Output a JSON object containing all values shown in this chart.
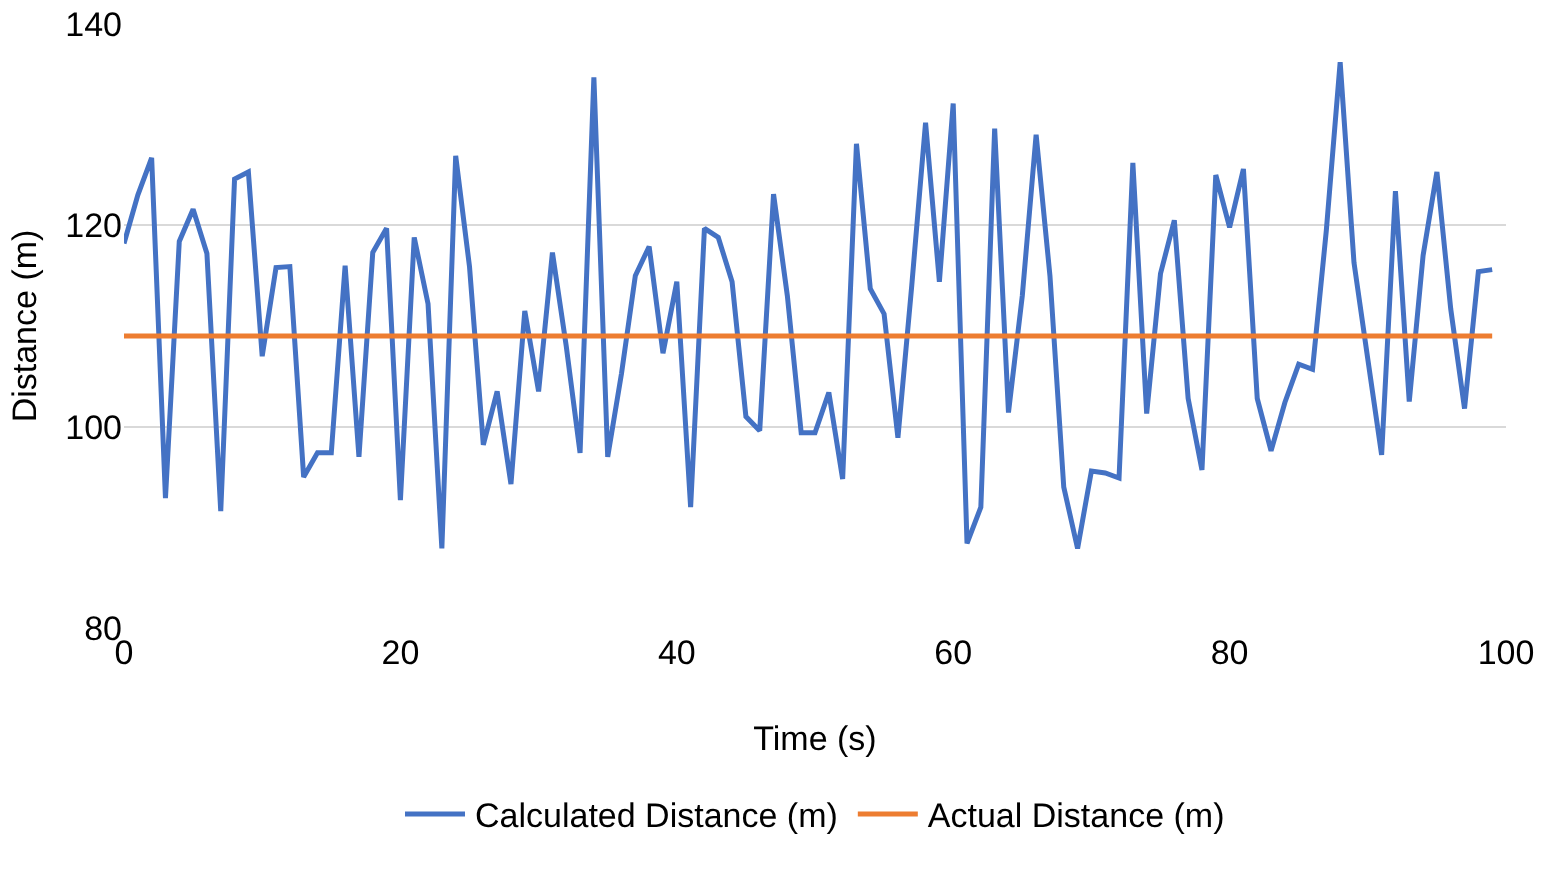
{
  "chart_data": {
    "type": "line",
    "xlabel": "Time (s)",
    "ylabel": "Distance (m)",
    "x": [
      0,
      1,
      2,
      3,
      4,
      5,
      6,
      7,
      8,
      9,
      10,
      11,
      12,
      13,
      14,
      15,
      16,
      17,
      18,
      19,
      20,
      21,
      22,
      23,
      24,
      25,
      26,
      27,
      28,
      29,
      30,
      31,
      32,
      33,
      34,
      35,
      36,
      37,
      38,
      39,
      40,
      41,
      42,
      43,
      44,
      45,
      46,
      47,
      48,
      49,
      50,
      51,
      52,
      53,
      54,
      55,
      56,
      57,
      58,
      59,
      60,
      61,
      62,
      63,
      64,
      65,
      66,
      67,
      68,
      69,
      70,
      71,
      72,
      73,
      74,
      75,
      76,
      77,
      78,
      79,
      80,
      81,
      82,
      83,
      84,
      85,
      86,
      87,
      88,
      89,
      90,
      91,
      92,
      93,
      94,
      95,
      96,
      97,
      98,
      99
    ],
    "series": [
      {
        "name": "Calculated Distance (m)",
        "color": "#4472c4",
        "values": [
          118.2,
          123,
          126.7,
          92.9,
          118.4,
          121.6,
          117.2,
          91.6,
          124.6,
          125.3,
          107,
          115.8,
          115.9,
          95,
          97.4,
          97.4,
          116,
          97,
          117.3,
          119.7,
          92.7,
          118.8,
          112.2,
          87.9,
          126.9,
          115.9,
          98.2,
          103.5,
          94.3,
          111.5,
          103.5,
          117.3,
          108,
          97.4,
          134.7,
          97,
          105.3,
          115,
          117.9,
          107.3,
          114.4,
          92,
          119.7,
          118.8,
          114.4,
          101,
          99.6,
          123.1,
          113,
          99.4,
          99.4,
          103.4,
          94.8,
          128.1,
          113.7,
          111.2,
          98.9,
          114,
          130.2,
          114.4,
          132.1,
          88.4,
          92,
          129.6,
          101.4,
          113,
          129,
          115,
          94,
          87.9,
          95.6,
          95.4,
          94.9,
          126.2,
          101.3,
          115.2,
          120.5,
          102.8,
          95.7,
          125,
          119.8,
          125.6,
          102.8,
          97.6,
          102.4,
          106.2,
          105.7,
          119.5,
          136.2,
          116.3,
          106.7,
          97.2,
          123.4,
          102.5,
          117,
          125.3,
          111.7,
          101.8,
          115.4,
          115.6
        ]
      },
      {
        "name": "Actual Distance (m)",
        "color": "#ed7d31",
        "x": [
          0,
          99
        ],
        "values": [
          109,
          109
        ]
      }
    ],
    "xlim": [
      0,
      100
    ],
    "xticks": [
      0,
      20,
      40,
      60,
      80,
      100
    ],
    "ylim": [
      80,
      140
    ],
    "yticks": [
      80,
      100,
      120,
      140
    ],
    "grid": "y",
    "legend": "bottom",
    "marker": "none",
    "line_style": "solid"
  }
}
